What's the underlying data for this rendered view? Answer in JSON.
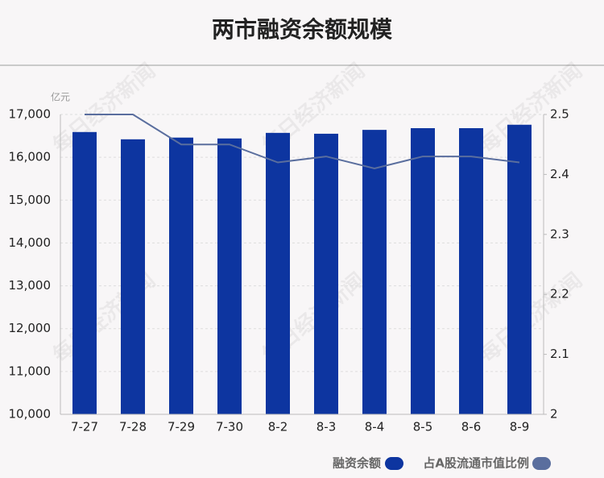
{
  "chart_data": {
    "type": "bar",
    "title": "两市融资余额规模",
    "y_unit": "亿元",
    "watermark": "每日经济新闻",
    "categories": [
      "7-27",
      "7-28",
      "7-29",
      "7-30",
      "8-2",
      "8-3",
      "8-4",
      "8-5",
      "8-6",
      "8-9"
    ],
    "series": [
      {
        "name": "融资余额",
        "color": "#0d35a0",
        "values": [
          16590,
          16420,
          16460,
          16440,
          16570,
          16550,
          16640,
          16680,
          16680,
          16760
        ]
      },
      {
        "name": "占A股流通市值比例",
        "color": "#5a6e9e",
        "axis": "y2",
        "values": [
          2.5,
          2.5,
          2.45,
          2.45,
          2.42,
          2.43,
          2.41,
          2.43,
          2.43,
          2.42
        ]
      }
    ],
    "ylim": [
      10000,
      17000
    ],
    "yticks": [
      {
        "value": 10000,
        "label": "10,000"
      },
      {
        "value": 11000,
        "label": "11,000"
      },
      {
        "value": 12000,
        "label": "12,000"
      },
      {
        "value": 13000,
        "label": "13,000"
      },
      {
        "value": 14000,
        "label": "14,000"
      },
      {
        "value": 15000,
        "label": "15,000"
      },
      {
        "value": 16000,
        "label": "16,000"
      },
      {
        "value": 17000,
        "label": "17,000"
      }
    ],
    "y2lim": [
      2,
      2.5
    ],
    "y2ticks": [
      2,
      2.1,
      2.2,
      2.3,
      2.4,
      2.5
    ],
    "grid": true,
    "legend": "bottom-right"
  }
}
